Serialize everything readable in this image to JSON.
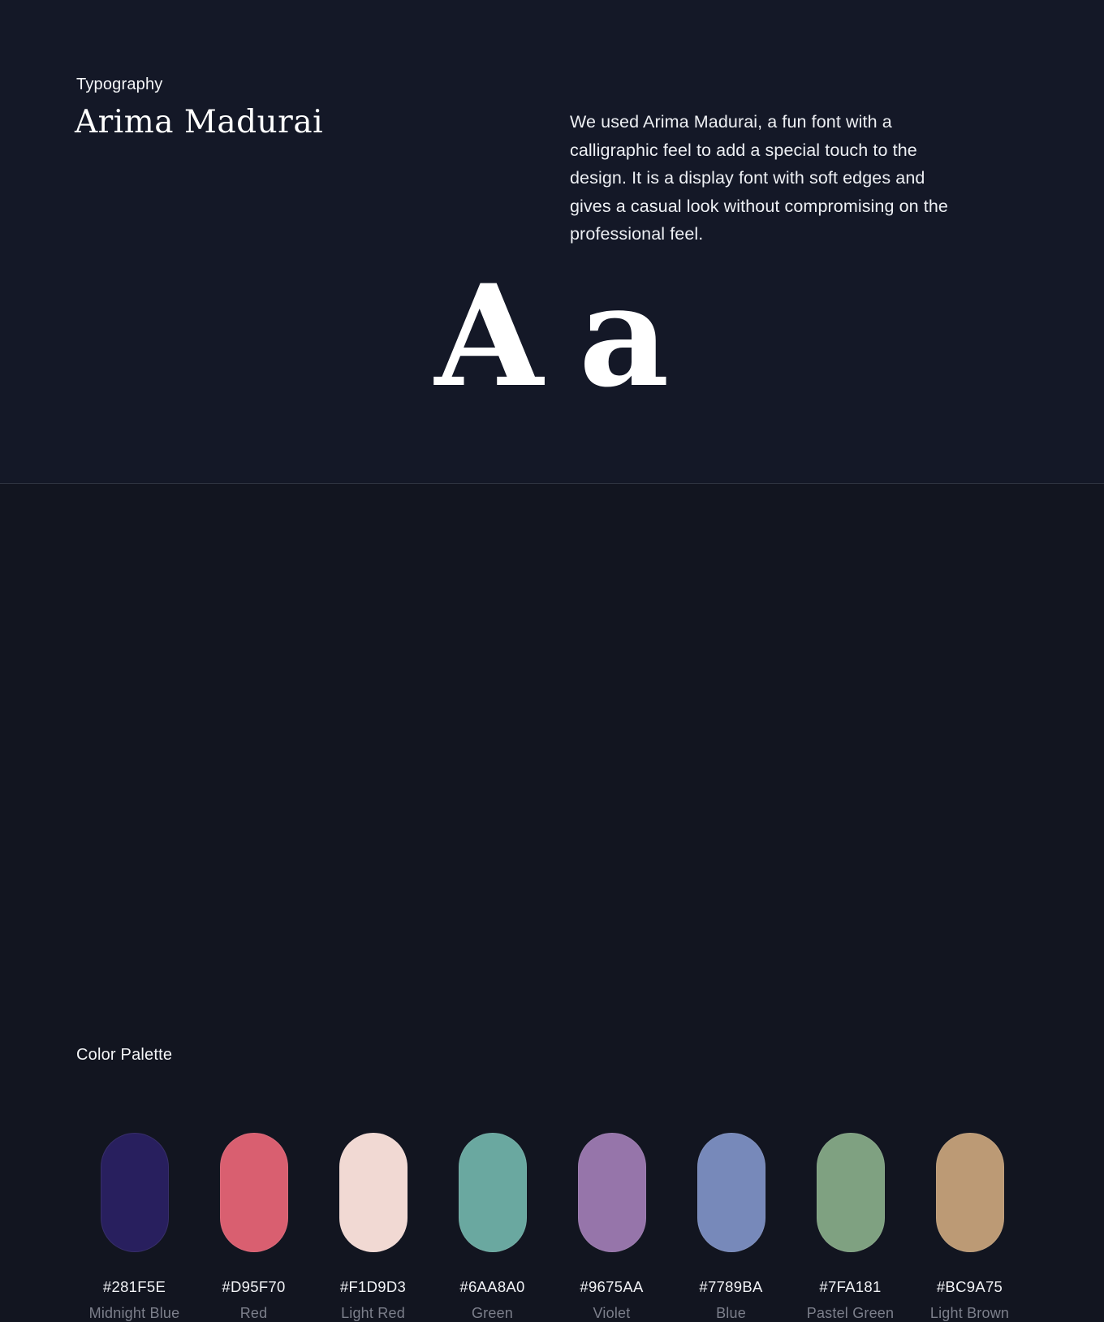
{
  "typography_section": {
    "eyebrow": "Typography",
    "heading": "Arima Madurai",
    "description": "We used Arima Madurai, a fun font with a calligraphic feel to add a special touch to the design. It is a display font with soft edges and gives a casual look without compromising on the professional feel.",
    "specimen": {
      "uppercase": "A",
      "lowercase": "a"
    }
  },
  "palette_section": {
    "title": "Color Palette",
    "swatches": [
      {
        "hex": "#281F5E",
        "name": "Midnight Blue"
      },
      {
        "hex": "#D95F70",
        "name": "Red"
      },
      {
        "hex": "#F1D9D3",
        "name": "Light Red"
      },
      {
        "hex": "#6AA8A0",
        "name": "Green"
      },
      {
        "hex": "#9675AA",
        "name": "Violet"
      },
      {
        "hex": "#7789BA",
        "name": "Blue"
      },
      {
        "hex": "#7FA181",
        "name": "Pastel Green"
      },
      {
        "hex": "#BC9A75",
        "name": "Light Brown"
      }
    ]
  },
  "colors": {
    "background_top": "#141827",
    "background_bottom": "#121520",
    "divider": "#2e3340",
    "text_primary": "#f4f5f7",
    "text_muted": "#7c7f8b"
  }
}
